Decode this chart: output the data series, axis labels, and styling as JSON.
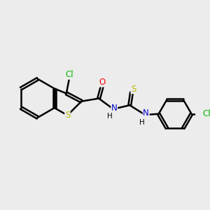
{
  "background_color": "#ececec",
  "atom_colors": {
    "C": "#000000",
    "N": "#0000cc",
    "O": "#ff0000",
    "S_ring": "#b8b800",
    "S_thio": "#b8b800",
    "Cl": "#00bb00",
    "H": "#000000"
  },
  "bond_color": "#000000",
  "bond_width": 1.8,
  "font_size": 8.5,
  "font_size_H": 7.5
}
